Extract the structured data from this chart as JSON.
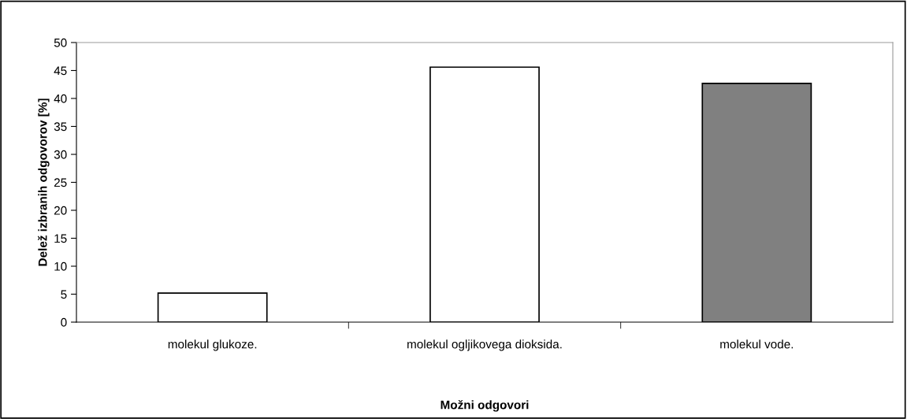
{
  "chart_data": {
    "type": "bar",
    "xlabel": "Možni odgovori",
    "ylabel": "Delež izbranih odgovorov [%]",
    "categories": [
      "molekul glukoze.",
      "molekul ogljikovega dioksida.",
      "molekul vode."
    ],
    "values": [
      5.2,
      45.6,
      42.7
    ],
    "colors": [
      "#ffffff",
      "#ffffff",
      "#808080"
    ],
    "ylim": [
      0,
      50
    ],
    "yticks": [
      0,
      5,
      10,
      15,
      20,
      25,
      30,
      35,
      40,
      45,
      50
    ],
    "grid": false,
    "legend": false
  }
}
